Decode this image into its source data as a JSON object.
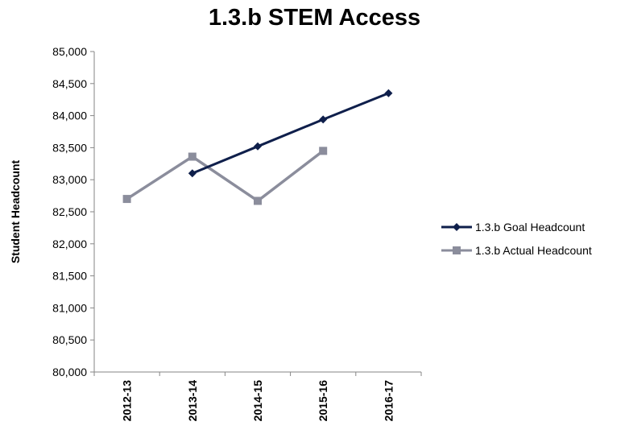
{
  "chart_data": {
    "type": "line",
    "title": "1.3.b STEM Access",
    "xlabel": "",
    "ylabel": "Student Headcount",
    "categories": [
      "2012-13",
      "2013-14",
      "2014-15",
      "2015-16",
      "2016-17"
    ],
    "ylim": [
      80000,
      85000
    ],
    "yticks": [
      80000,
      80500,
      81000,
      81500,
      82000,
      82500,
      83000,
      83500,
      84000,
      84500,
      85000
    ],
    "ytick_labels": [
      "80,000",
      "80,500",
      "81,000",
      "81,500",
      "82,000",
      "82,500",
      "83,000",
      "83,500",
      "84,000",
      "84,500",
      "85,000"
    ],
    "grid": false,
    "legend_position": "right",
    "series": [
      {
        "name": "1.3.b Goal Headcount",
        "color": "#0f1f4b",
        "marker": "diamond",
        "values": [
          null,
          83100,
          83520,
          83940,
          84350
        ]
      },
      {
        "name": "1.3.b Actual Headcount",
        "color": "#8b8d9c",
        "marker": "square",
        "values": [
          82700,
          83360,
          82670,
          83450,
          null
        ]
      }
    ]
  }
}
